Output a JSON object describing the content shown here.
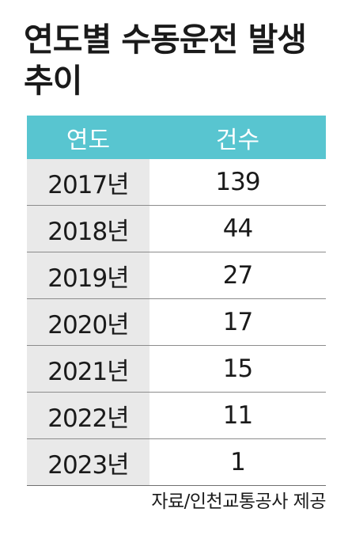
{
  "chart_data": {
    "type": "table",
    "title": "연도별 수동운전 발생 추이",
    "columns": [
      "연도",
      "건수"
    ],
    "rows": [
      [
        "2017년",
        139
      ],
      [
        "2018년",
        44
      ],
      [
        "2019년",
        27
      ],
      [
        "2020년",
        17
      ],
      [
        "2021년",
        15
      ],
      [
        "2022년",
        11
      ],
      [
        "2023년",
        1
      ]
    ],
    "source": "자료/인천교통공사 제공"
  },
  "colors": {
    "header_bg": "#58c5d0",
    "year_col_bg": "#e9e9e9"
  }
}
